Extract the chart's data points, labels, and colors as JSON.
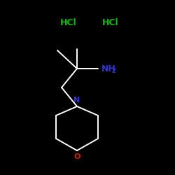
{
  "background_color": "#000000",
  "bond_color": "#ffffff",
  "hcl_color": "#00bb00",
  "nh2_color": "#3333cc",
  "n_color": "#3333cc",
  "o_color": "#cc2200",
  "hcl1_text": "HCl",
  "hcl2_text": "HCl",
  "n_text": "N",
  "o_text": "O",
  "figsize": [
    2.5,
    2.5
  ],
  "dpi": 100,
  "lw": 1.4
}
